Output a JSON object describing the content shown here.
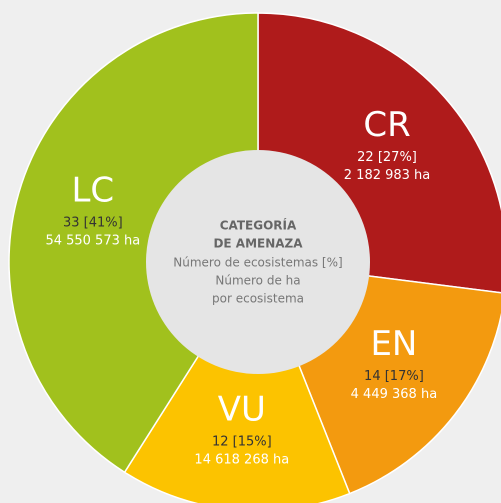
{
  "chart_data": {
    "type": "donut",
    "title": [
      "CATEGORÍA",
      "DE AMENAZA"
    ],
    "subtitle": [
      "Número de ecosistemas [%]",
      "Número de ha",
      "por ecosistema"
    ],
    "categories": [
      "CR",
      "EN",
      "VU",
      "LC"
    ],
    "values": [
      27,
      17,
      15,
      41
    ],
    "counts": [
      22,
      14,
      12,
      33
    ],
    "value_labels": [
      "22 [27%]",
      "14 [17%]",
      "12 [15%]",
      "33 [41%]"
    ],
    "areas": [
      2182983,
      4449368,
      14618268,
      54550573
    ],
    "area_labels": [
      "2 182 983 ha",
      "4 449 368 ha",
      "14 618 268 ha",
      "54 550 573 ha"
    ],
    "colors": [
      "#af1b1b",
      "#f39a0f",
      "#fcc300",
      "#a1c11d"
    ],
    "label_colors": [
      "#ffffff",
      "#333333",
      "#333333",
      "#333333"
    ]
  }
}
